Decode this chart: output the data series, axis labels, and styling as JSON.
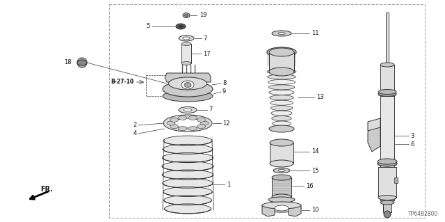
{
  "bg_color": "#ffffff",
  "lc": "#333333",
  "tc": "#111111",
  "fs": 6.0,
  "lw_lead": 0.5,
  "code_text": "TP64B2800",
  "border": [
    0.245,
    0.018,
    0.955,
    0.982
  ]
}
